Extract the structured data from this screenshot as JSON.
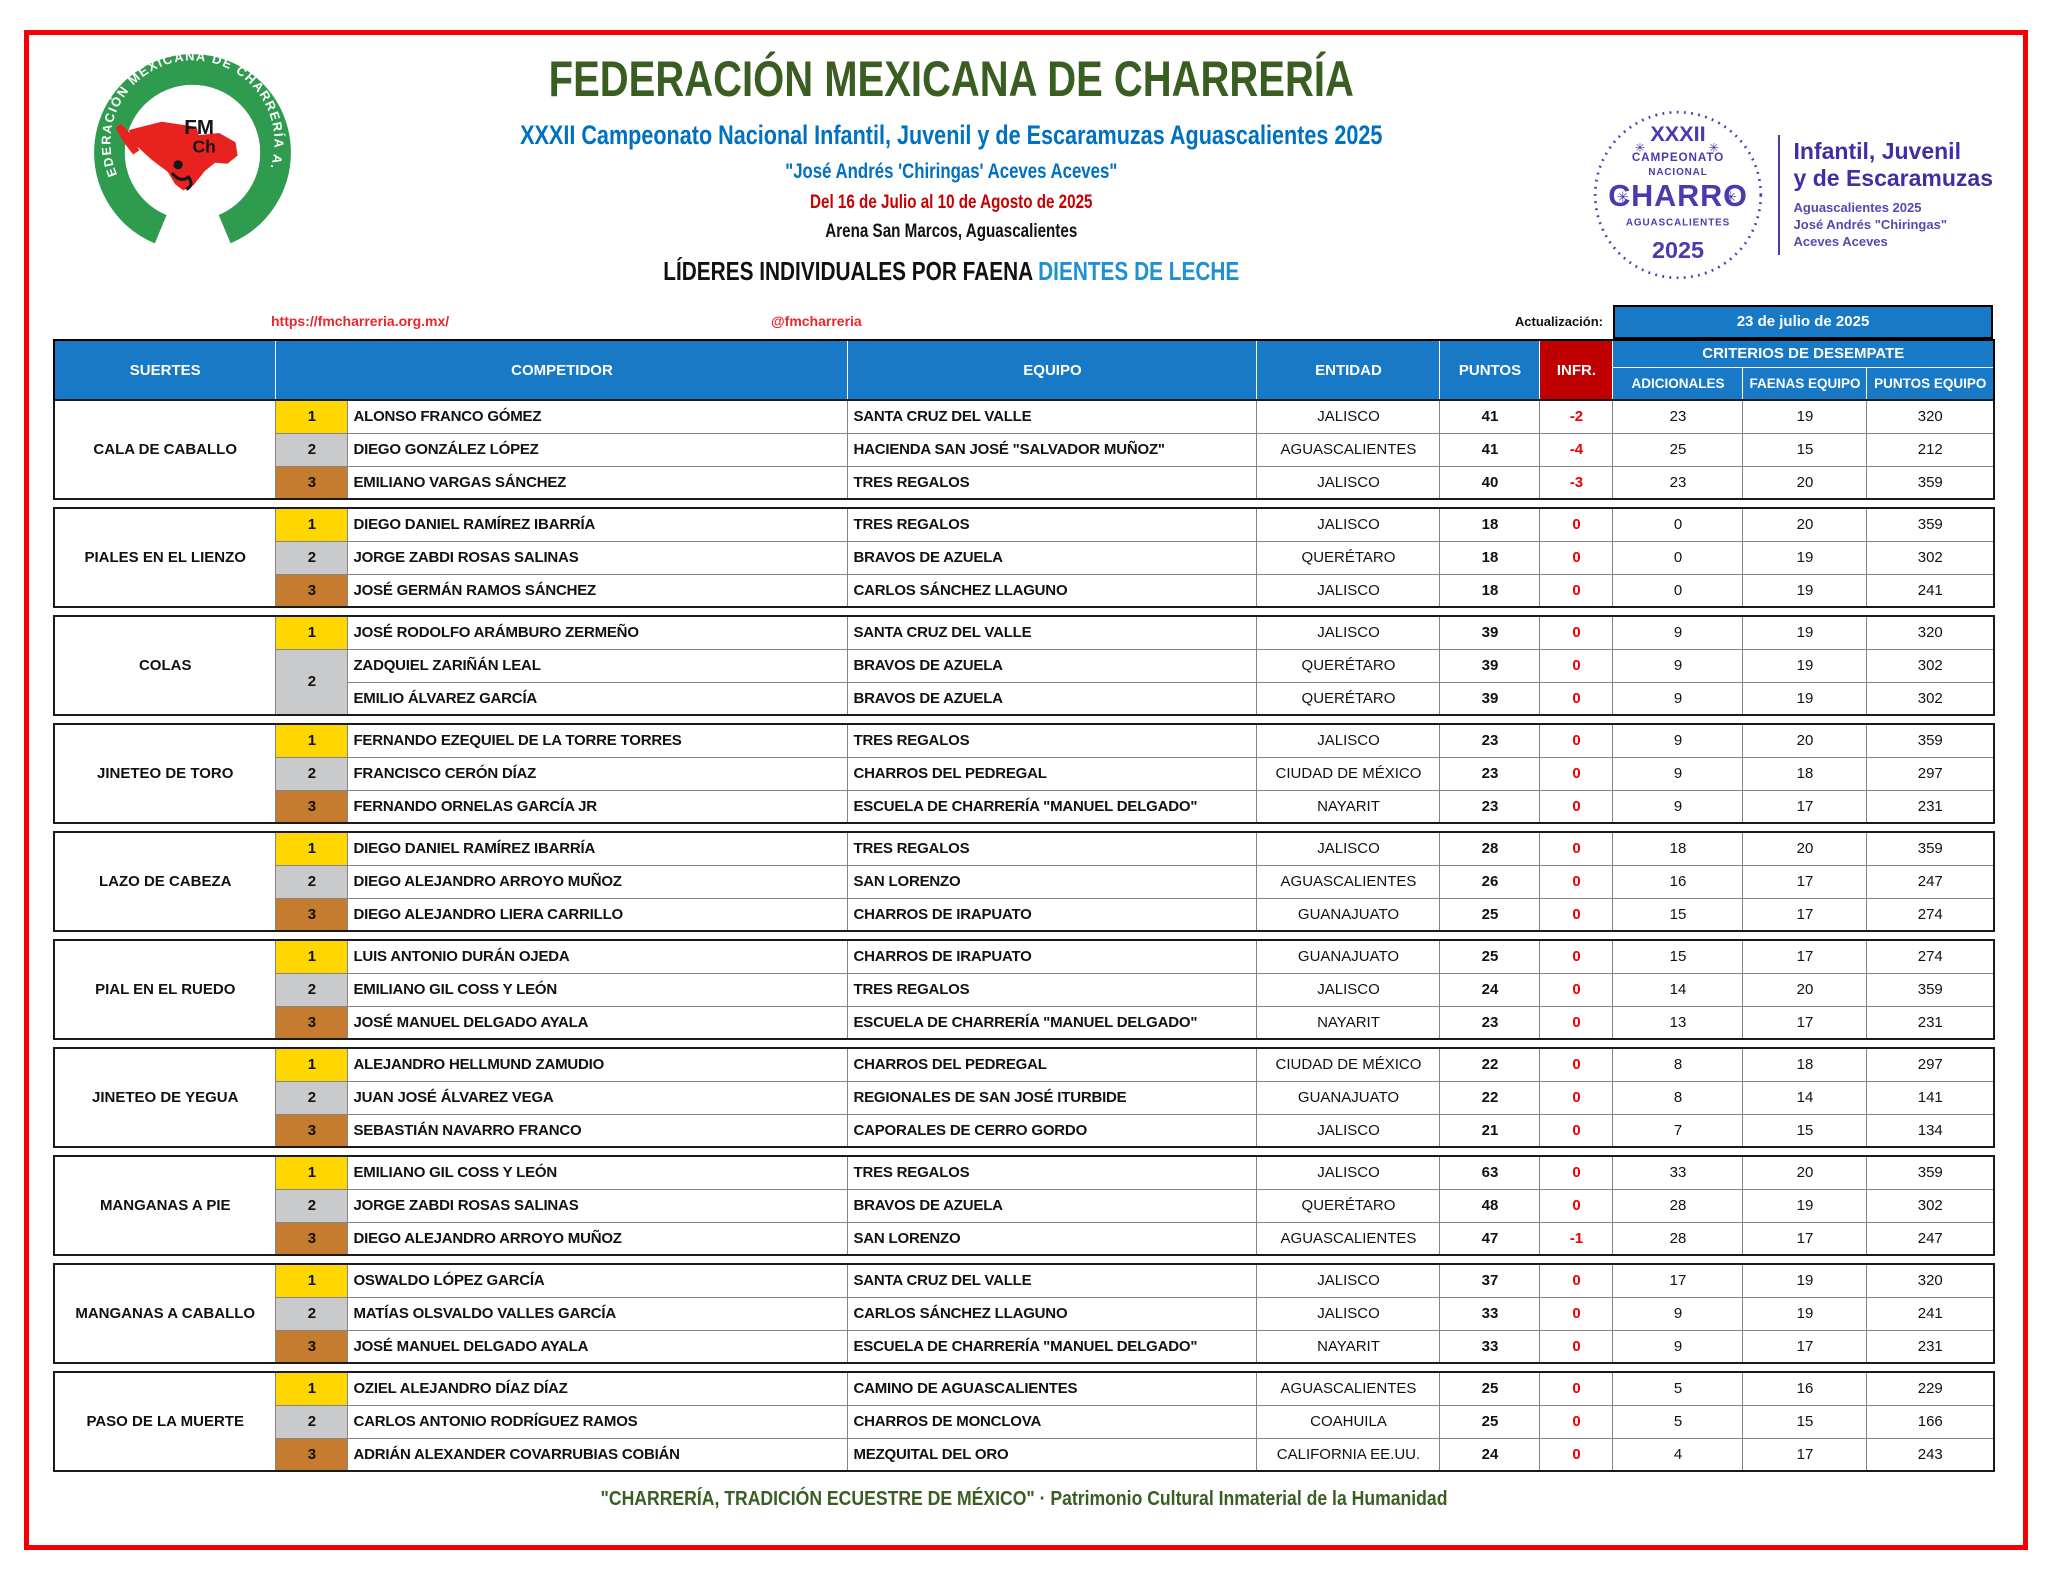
{
  "page": {
    "title": "FEDERACIÓN MEXICANA DE CHARRERÍA",
    "subtitle_championship": "XXXII Campeonato Nacional Infantil, Juvenil y de Escaramuzas Aguascalientes 2025",
    "subtitle_honoree": "\"José Andrés 'Chiringas' Aceves Aceves\"",
    "subtitle_dates": "Del 16 de Julio al 10 de Agosto de 2025",
    "subtitle_venue": "Arena San Marcos, Aguascalientes",
    "report_title_black": "LÍDERES INDIVIDUALES POR FAENA",
    "report_title_blue": "DIENTES DE LECHE",
    "footer": "\"CHARRERÍA, TRADICIÓN ECUESTRE DE MÉXICO\" · Patrimonio Cultural Inmaterial de la Humanidad"
  },
  "links": {
    "website": "https://fmcharreria.org.mx/",
    "social": "@fmcharreria"
  },
  "update": {
    "label": "Actualización:",
    "date": "23 de julio de 2025"
  },
  "logo_left": {
    "ring_text": "FEDERACIÓN MEXICANA DE CHARRERÍA A.C.",
    "monogram_top": "FM",
    "monogram_bottom": "Ch"
  },
  "logo_right": {
    "badge": {
      "line_top": "XXXII",
      "line2": "CAMPEONATO",
      "line3": "NACIONAL",
      "line_main": "CHARRO",
      "line4": "AGUASCALIENTES",
      "line_year": "2025"
    },
    "title1": "Infantil, Juvenil",
    "title2": "y de Escaramuzas",
    "sub1": "Aguascalientes 2025",
    "sub2": "José Andrés \"Chiringas\"",
    "sub3": "Aceves Aceves"
  },
  "colors": {
    "header_blue": "#1879C7",
    "infr_red_bg": "#C00000",
    "value_red": "#E90000",
    "gold": "#FFD700",
    "silver": "#C9CACB",
    "bronze": "#C57C2F",
    "title_green": "#3A5E22",
    "subtitle_blue": "#0070C0",
    "dates_red": "#C80000",
    "link_red": "#E8262D",
    "badge_purple": "#4B3AAE",
    "page_border_red": "#F50002"
  },
  "table": {
    "headers": {
      "suertes": "SUERTES",
      "competidor": "COMPETIDOR",
      "equipo": "EQUIPO",
      "entidad": "ENTIDAD",
      "puntos": "PUNTOS",
      "infr": "INFR.",
      "criterios": "CRITERIOS DE DESEMPATE",
      "adicionales": "ADICIONALES",
      "faenas_equipo": "FAENAS EQUIPO",
      "puntos_equipo": "PUNTOS  EQUIPO"
    },
    "sections": [
      {
        "suerte": "CALA DE CABALLO",
        "rows": [
          {
            "rank": "1",
            "medal": "gold",
            "competidor": "ALONSO FRANCO GÓMEZ",
            "equipo": "SANTA CRUZ DEL VALLE",
            "entidad": "JALISCO",
            "puntos": "41",
            "infr": "-2",
            "adicionales": "23",
            "faenas_equipo": "19",
            "puntos_equipo": "320"
          },
          {
            "rank": "2",
            "medal": "silver",
            "competidor": "DIEGO GONZÁLEZ LÓPEZ",
            "equipo": "HACIENDA SAN JOSÉ \"SALVADOR MUÑOZ\"",
            "entidad": "AGUASCALIENTES",
            "puntos": "41",
            "infr": "-4",
            "adicionales": "25",
            "faenas_equipo": "15",
            "puntos_equipo": "212"
          },
          {
            "rank": "3",
            "medal": "bronze",
            "competidor": "EMILIANO VARGAS SÁNCHEZ",
            "equipo": "TRES REGALOS",
            "entidad": "JALISCO",
            "puntos": "40",
            "infr": "-3",
            "adicionales": "23",
            "faenas_equipo": "20",
            "puntos_equipo": "359"
          }
        ]
      },
      {
        "suerte": "PIALES EN EL LIENZO",
        "rows": [
          {
            "rank": "1",
            "medal": "gold",
            "competidor": "DIEGO DANIEL RAMÍREZ IBARRÍA",
            "equipo": "TRES REGALOS",
            "entidad": "JALISCO",
            "puntos": "18",
            "infr": "0",
            "adicionales": "0",
            "faenas_equipo": "20",
            "puntos_equipo": "359"
          },
          {
            "rank": "2",
            "medal": "silver",
            "competidor": "JORGE ZABDI ROSAS SALINAS",
            "equipo": "BRAVOS DE AZUELA",
            "entidad": "QUERÉTARO",
            "puntos": "18",
            "infr": "0",
            "adicionales": "0",
            "faenas_equipo": "19",
            "puntos_equipo": "302"
          },
          {
            "rank": "3",
            "medal": "bronze",
            "competidor": "JOSÉ GERMÁN RAMOS SÁNCHEZ",
            "equipo": "CARLOS SÁNCHEZ LLAGUNO",
            "entidad": "JALISCO",
            "puntos": "18",
            "infr": "0",
            "adicionales": "0",
            "faenas_equipo": "19",
            "puntos_equipo": "241"
          }
        ]
      },
      {
        "suerte": "COLAS",
        "rows": [
          {
            "rank": "1",
            "medal": "gold",
            "competidor": "JOSÉ RODOLFO ARÁMBURO ZERMEÑO",
            "equipo": "SANTA CRUZ DEL VALLE",
            "entidad": "JALISCO",
            "puntos": "39",
            "infr": "0",
            "adicionales": "9",
            "faenas_equipo": "19",
            "puntos_equipo": "320"
          },
          {
            "rank": "2",
            "medal": "silver",
            "rowspan": 2,
            "competidor": "ZADQUIEL ZARIÑÁN LEAL",
            "equipo": "BRAVOS DE AZUELA",
            "entidad": "QUERÉTARO",
            "puntos": "39",
            "infr": "0",
            "adicionales": "9",
            "faenas_equipo": "19",
            "puntos_equipo": "302"
          },
          {
            "rank": null,
            "medal": null,
            "competidor": "EMILIO ÁLVAREZ GARCÍA",
            "equipo": "BRAVOS DE AZUELA",
            "entidad": "QUERÉTARO",
            "puntos": "39",
            "infr": "0",
            "adicionales": "9",
            "faenas_equipo": "19",
            "puntos_equipo": "302"
          }
        ]
      },
      {
        "suerte": "JINETEO DE TORO",
        "rows": [
          {
            "rank": "1",
            "medal": "gold",
            "competidor": "FERNANDO EZEQUIEL DE LA TORRE TORRES",
            "equipo": "TRES REGALOS",
            "entidad": "JALISCO",
            "puntos": "23",
            "infr": "0",
            "adicionales": "9",
            "faenas_equipo": "20",
            "puntos_equipo": "359"
          },
          {
            "rank": "2",
            "medal": "silver",
            "competidor": "FRANCISCO CERÓN DÍAZ",
            "equipo": "CHARROS DEL PEDREGAL",
            "entidad": "CIUDAD DE MÉXICO",
            "puntos": "23",
            "infr": "0",
            "adicionales": "9",
            "faenas_equipo": "18",
            "puntos_equipo": "297"
          },
          {
            "rank": "3",
            "medal": "bronze",
            "competidor": "FERNANDO ORNELAS GARCÍA JR",
            "equipo": "ESCUELA DE CHARRERÍA \"MANUEL DELGADO\"",
            "entidad": "NAYARIT",
            "puntos": "23",
            "infr": "0",
            "adicionales": "9",
            "faenas_equipo": "17",
            "puntos_equipo": "231"
          }
        ]
      },
      {
        "suerte": "LAZO DE CABEZA",
        "rows": [
          {
            "rank": "1",
            "medal": "gold",
            "competidor": "DIEGO DANIEL RAMÍREZ IBARRÍA",
            "equipo": "TRES REGALOS",
            "entidad": "JALISCO",
            "puntos": "28",
            "infr": "0",
            "adicionales": "18",
            "faenas_equipo": "20",
            "puntos_equipo": "359"
          },
          {
            "rank": "2",
            "medal": "silver",
            "competidor": "DIEGO ALEJANDRO ARROYO MUÑOZ",
            "equipo": "SAN LORENZO",
            "entidad": "AGUASCALIENTES",
            "puntos": "26",
            "infr": "0",
            "adicionales": "16",
            "faenas_equipo": "17",
            "puntos_equipo": "247"
          },
          {
            "rank": "3",
            "medal": "bronze",
            "competidor": "DIEGO ALEJANDRO LIERA CARRILLO",
            "equipo": "CHARROS DE IRAPUATO",
            "entidad": "GUANAJUATO",
            "puntos": "25",
            "infr": "0",
            "adicionales": "15",
            "faenas_equipo": "17",
            "puntos_equipo": "274"
          }
        ]
      },
      {
        "suerte": "PIAL EN EL RUEDO",
        "rows": [
          {
            "rank": "1",
            "medal": "gold",
            "competidor": "LUIS ANTONIO DURÁN OJEDA",
            "equipo": "CHARROS DE IRAPUATO",
            "entidad": "GUANAJUATO",
            "puntos": "25",
            "infr": "0",
            "adicionales": "15",
            "faenas_equipo": "17",
            "puntos_equipo": "274"
          },
          {
            "rank": "2",
            "medal": "silver",
            "competidor": "EMILIANO GIL COSS Y LEÓN",
            "equipo": "TRES REGALOS",
            "entidad": "JALISCO",
            "puntos": "24",
            "infr": "0",
            "adicionales": "14",
            "faenas_equipo": "20",
            "puntos_equipo": "359"
          },
          {
            "rank": "3",
            "medal": "bronze",
            "competidor": "JOSÉ MANUEL DELGADO AYALA",
            "equipo": "ESCUELA DE CHARRERÍA \"MANUEL DELGADO\"",
            "entidad": "NAYARIT",
            "puntos": "23",
            "infr": "0",
            "adicionales": "13",
            "faenas_equipo": "17",
            "puntos_equipo": "231"
          }
        ]
      },
      {
        "suerte": "JINETEO DE YEGUA",
        "rows": [
          {
            "rank": "1",
            "medal": "gold",
            "competidor": "ALEJANDRO HELLMUND ZAMUDIO",
            "equipo": "CHARROS DEL PEDREGAL",
            "entidad": "CIUDAD DE MÉXICO",
            "puntos": "22",
            "infr": "0",
            "adicionales": "8",
            "faenas_equipo": "18",
            "puntos_equipo": "297"
          },
          {
            "rank": "2",
            "medal": "silver",
            "competidor": "JUAN JOSÉ ÁLVAREZ VEGA",
            "equipo": "REGIONALES DE SAN JOSÉ ITURBIDE",
            "entidad": "GUANAJUATO",
            "puntos": "22",
            "infr": "0",
            "adicionales": "8",
            "faenas_equipo": "14",
            "puntos_equipo": "141"
          },
          {
            "rank": "3",
            "medal": "bronze",
            "competidor": "SEBASTIÁN NAVARRO FRANCO",
            "equipo": "CAPORALES DE CERRO GORDO",
            "entidad": "JALISCO",
            "puntos": "21",
            "infr": "0",
            "adicionales": "7",
            "faenas_equipo": "15",
            "puntos_equipo": "134"
          }
        ]
      },
      {
        "suerte": "MANGANAS A PIE",
        "rows": [
          {
            "rank": "1",
            "medal": "gold",
            "competidor": "EMILIANO GIL COSS Y LEÓN",
            "equipo": "TRES REGALOS",
            "entidad": "JALISCO",
            "puntos": "63",
            "infr": "0",
            "adicionales": "33",
            "faenas_equipo": "20",
            "puntos_equipo": "359"
          },
          {
            "rank": "2",
            "medal": "silver",
            "competidor": "JORGE ZABDI ROSAS SALINAS",
            "equipo": "BRAVOS DE AZUELA",
            "entidad": "QUERÉTARO",
            "puntos": "48",
            "infr": "0",
            "adicionales": "28",
            "faenas_equipo": "19",
            "puntos_equipo": "302"
          },
          {
            "rank": "3",
            "medal": "bronze",
            "competidor": "DIEGO ALEJANDRO ARROYO MUÑOZ",
            "equipo": "SAN LORENZO",
            "entidad": "AGUASCALIENTES",
            "puntos": "47",
            "infr": "-1",
            "adicionales": "28",
            "faenas_equipo": "17",
            "puntos_equipo": "247"
          }
        ]
      },
      {
        "suerte": "MANGANAS A CABALLO",
        "rows": [
          {
            "rank": "1",
            "medal": "gold",
            "competidor": "OSWALDO LÓPEZ GARCÍA",
            "equipo": "SANTA CRUZ DEL VALLE",
            "entidad": "JALISCO",
            "puntos": "37",
            "infr": "0",
            "adicionales": "17",
            "faenas_equipo": "19",
            "puntos_equipo": "320"
          },
          {
            "rank": "2",
            "medal": "silver",
            "competidor": "MATÍAS OLSVALDO VALLES GARCÍA",
            "equipo": "CARLOS SÁNCHEZ LLAGUNO",
            "entidad": "JALISCO",
            "puntos": "33",
            "infr": "0",
            "adicionales": "9",
            "faenas_equipo": "19",
            "puntos_equipo": "241"
          },
          {
            "rank": "3",
            "medal": "bronze",
            "competidor": "JOSÉ MANUEL DELGADO AYALA",
            "equipo": "ESCUELA DE CHARRERÍA \"MANUEL DELGADO\"",
            "entidad": "NAYARIT",
            "puntos": "33",
            "infr": "0",
            "adicionales": "9",
            "faenas_equipo": "17",
            "puntos_equipo": "231"
          }
        ]
      },
      {
        "suerte": "PASO DE LA MUERTE",
        "rows": [
          {
            "rank": "1",
            "medal": "gold",
            "competidor": "OZIEL ALEJANDRO DÍAZ DÍAZ",
            "equipo": "CAMINO DE AGUASCALIENTES",
            "entidad": "AGUASCALIENTES",
            "puntos": "25",
            "infr": "0",
            "adicionales": "5",
            "faenas_equipo": "16",
            "puntos_equipo": "229"
          },
          {
            "rank": "2",
            "medal": "silver",
            "competidor": "CARLOS ANTONIO RODRÍGUEZ RAMOS",
            "equipo": "CHARROS DE MONCLOVA",
            "entidad": "COAHUILA",
            "puntos": "25",
            "infr": "0",
            "adicionales": "5",
            "faenas_equipo": "15",
            "puntos_equipo": "166"
          },
          {
            "rank": "3",
            "medal": "bronze",
            "competidor": "ADRIÁN ALEXANDER COVARRUBIAS COBIÁN",
            "equipo": "MEZQUITAL DEL ORO",
            "entidad": "CALIFORNIA EE.UU.",
            "puntos": "24",
            "infr": "0",
            "adicionales": "4",
            "faenas_equipo": "17",
            "puntos_equipo": "243"
          }
        ]
      }
    ]
  }
}
